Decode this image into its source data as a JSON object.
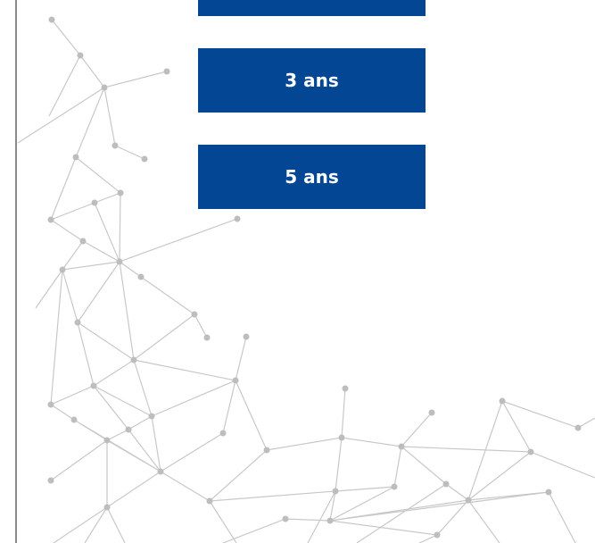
{
  "buttons": [
    "3 ans",
    "5 ans"
  ]
}
